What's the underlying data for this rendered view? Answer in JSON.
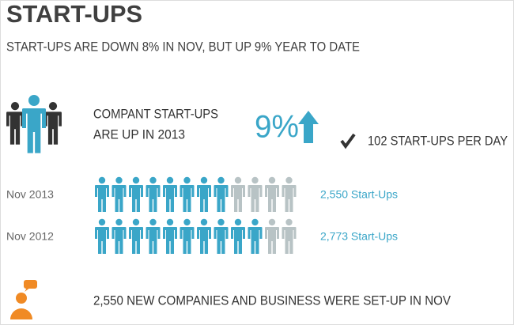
{
  "header": {
    "title": "START-UPS",
    "subtitle": "START-UPS ARE DOWN 8% IN NOV, BUT UP 9% YEAR TO DATE"
  },
  "highlight": {
    "text_line1": "COMPANT START-UPS",
    "text_line2": "ARE UP IN 2013",
    "percent": "9%",
    "per_day": "102 START-UPS PER DAY"
  },
  "rows": [
    {
      "label": "Nov 2013",
      "value": "2,550 Start-Ups",
      "filled": 8,
      "total": 12
    },
    {
      "label": "Nov 2012",
      "value": "2,773 Start-Ups",
      "filled": 10,
      "total": 12
    }
  ],
  "footer": {
    "text": "2,550 NEW COMPANIES AND BUSINESS WERE SET-UP IN NOV"
  }
}
